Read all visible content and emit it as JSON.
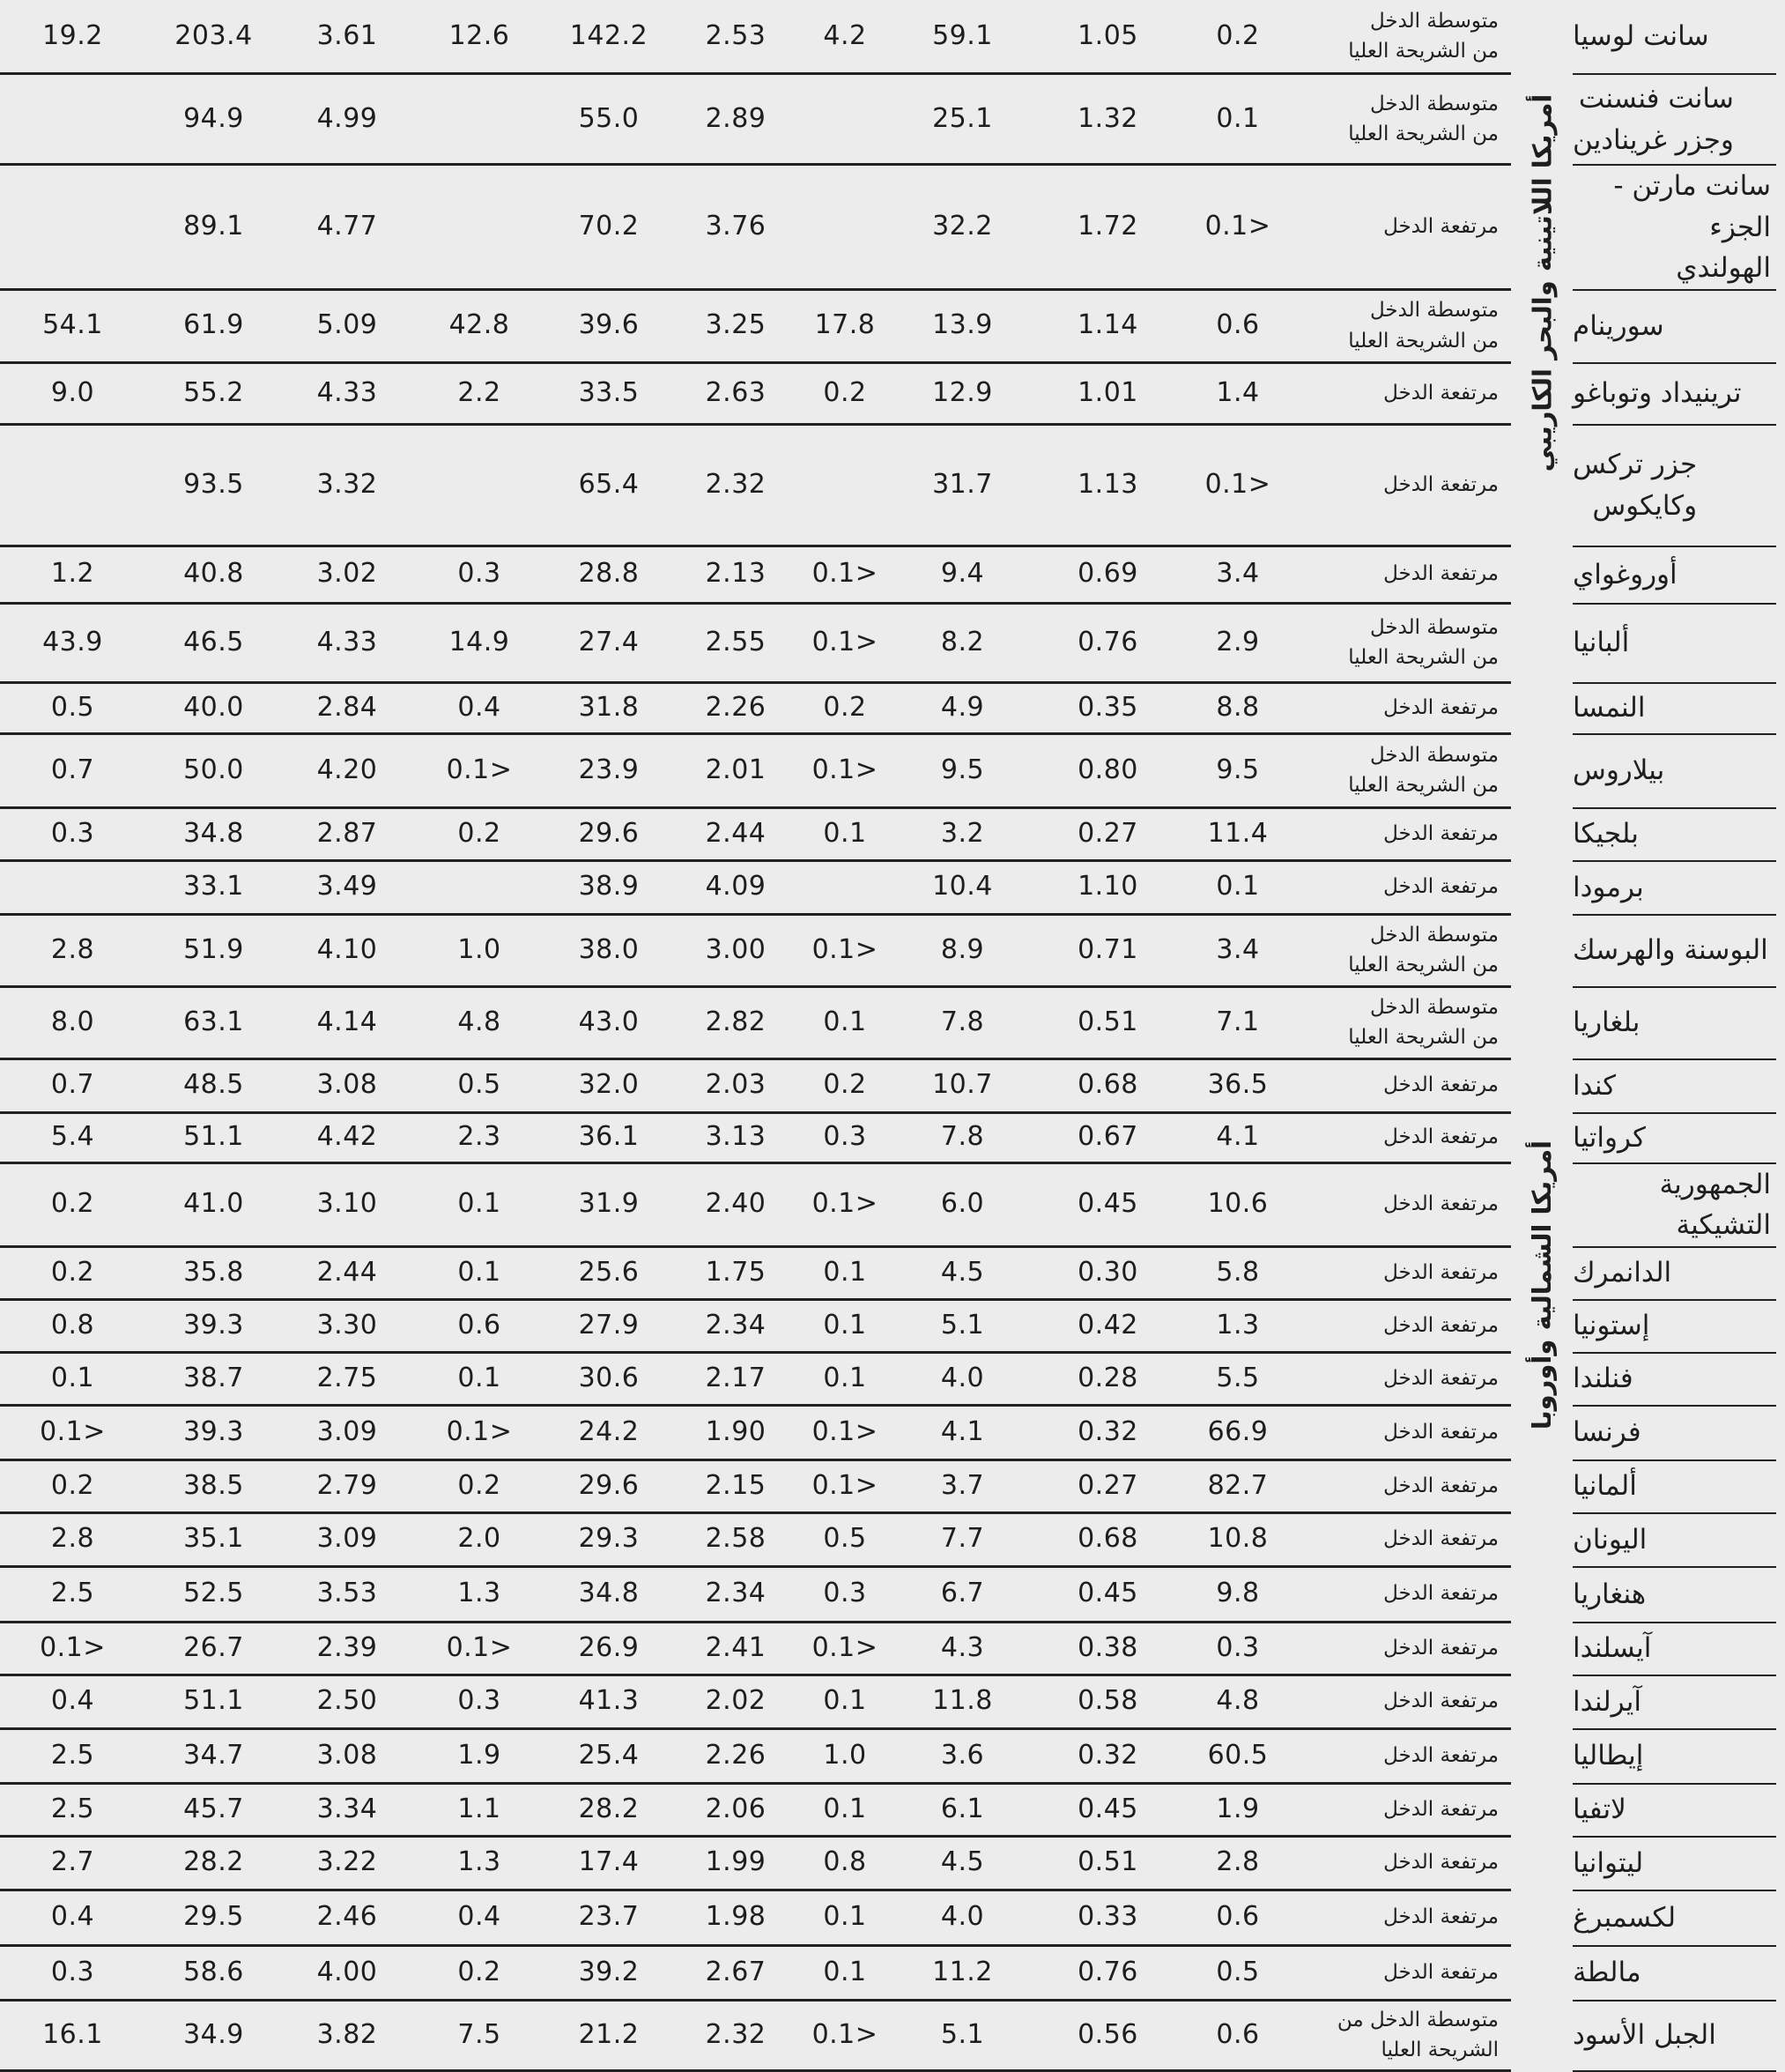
{
  "colors": {
    "background": "#ececec",
    "text": "#1e1e1e",
    "rule": "#222222"
  },
  "table": {
    "direction": "rtl",
    "region_labels": [
      {
        "label": "أمريكا اللاتينية والبحر الكاريبي",
        "from_row": 1,
        "to_row": 7
      },
      {
        "label": "أمريكا الشمالية وأوروبا",
        "from_row": 8,
        "to_row": 32
      }
    ],
    "rows": [
      {
        "country": "سانت لوسيا",
        "income": "متوسطة الدخل\nمن الشريحة العليا",
        "values": [
          "19.2",
          "203.4",
          "3.61",
          "12.6",
          "142.2",
          "2.53",
          "4.2",
          "59.1",
          "1.05",
          "0.2"
        ]
      },
      {
        "country": "سانت فنسنت\nوجزر غرينادين",
        "income": "متوسطة الدخل\nمن الشريحة العليا",
        "values": [
          "",
          "94.9",
          "4.99",
          "",
          "55.0",
          "2.89",
          "",
          "25.1",
          "1.32",
          "0.1"
        ]
      },
      {
        "country": "سانت مارتن - الجزء\nالهولندي",
        "income": "مرتفعة الدخل",
        "values": [
          "",
          "89.1",
          "4.77",
          "",
          "70.2",
          "3.76",
          "",
          "32.2",
          "1.72",
          "<0.1"
        ]
      },
      {
        "country": "سورينام",
        "income": "متوسطة الدخل\nمن الشريحة العليا",
        "values": [
          "54.1",
          "61.9",
          "5.09",
          "42.8",
          "39.6",
          "3.25",
          "17.8",
          "13.9",
          "1.14",
          "0.6"
        ]
      },
      {
        "country": "ترينيداد وتوباغو",
        "income": "مرتفعة الدخل",
        "values": [
          "9.0",
          "55.2",
          "4.33",
          "2.2",
          "33.5",
          "2.63",
          "0.2",
          "12.9",
          "1.01",
          "1.4"
        ]
      },
      {
        "country": "جزر تركس\nوكايكوس",
        "income": "مرتفعة الدخل",
        "values": [
          "",
          "93.5",
          "3.32",
          "",
          "65.4",
          "2.32",
          "",
          "31.7",
          "1.13",
          "<0.1"
        ]
      },
      {
        "country": "أوروغواي",
        "income": "مرتفعة الدخل",
        "values": [
          "1.2",
          "40.8",
          "3.02",
          "0.3",
          "28.8",
          "2.13",
          "<0.1",
          "9.4",
          "0.69",
          "3.4"
        ]
      },
      {
        "country": "ألبانيا",
        "income": "متوسطة الدخل\nمن الشريحة العليا",
        "values": [
          "43.9",
          "46.5",
          "4.33",
          "14.9",
          "27.4",
          "2.55",
          "<0.1",
          "8.2",
          "0.76",
          "2.9"
        ]
      },
      {
        "country": "النمسا",
        "income": "مرتفعة الدخل",
        "values": [
          "0.5",
          "40.0",
          "2.84",
          "0.4",
          "31.8",
          "2.26",
          "0.2",
          "4.9",
          "0.35",
          "8.8"
        ]
      },
      {
        "country": "بيلاروس",
        "income": "متوسطة الدخل\nمن الشريحة العليا",
        "values": [
          "0.7",
          "50.0",
          "4.20",
          "<0.1",
          "23.9",
          "2.01",
          "<0.1",
          "9.5",
          "0.80",
          "9.5"
        ]
      },
      {
        "country": "بلجيكا",
        "income": "مرتفعة الدخل",
        "values": [
          "0.3",
          "34.8",
          "2.87",
          "0.2",
          "29.6",
          "2.44",
          "0.1",
          "3.2",
          "0.27",
          "11.4"
        ]
      },
      {
        "country": "برمودا",
        "income": "مرتفعة الدخل",
        "values": [
          "",
          "33.1",
          "3.49",
          "",
          "38.9",
          "4.09",
          "",
          "10.4",
          "1.10",
          "0.1"
        ]
      },
      {
        "country": "البوسنة والهرسك",
        "income": "متوسطة الدخل\nمن الشريحة العليا",
        "values": [
          "2.8",
          "51.9",
          "4.10",
          "1.0",
          "38.0",
          "3.00",
          "<0.1",
          "8.9",
          "0.71",
          "3.4"
        ]
      },
      {
        "country": "بلغاريا",
        "income": "متوسطة الدخل\nمن الشريحة العليا",
        "values": [
          "8.0",
          "63.1",
          "4.14",
          "4.8",
          "43.0",
          "2.82",
          "0.1",
          "7.8",
          "0.51",
          "7.1"
        ]
      },
      {
        "country": "كندا",
        "income": "مرتفعة الدخل",
        "values": [
          "0.7",
          "48.5",
          "3.08",
          "0.5",
          "32.0",
          "2.03",
          "0.2",
          "10.7",
          "0.68",
          "36.5"
        ]
      },
      {
        "country": "كرواتيا",
        "income": "مرتفعة الدخل",
        "values": [
          "5.4",
          "51.1",
          "4.42",
          "2.3",
          "36.1",
          "3.13",
          "0.3",
          "7.8",
          "0.67",
          "4.1"
        ]
      },
      {
        "country": "الجمهورية التشيكية",
        "income": "مرتفعة الدخل",
        "values": [
          "0.2",
          "41.0",
          "3.10",
          "0.1",
          "31.9",
          "2.40",
          "<0.1",
          "6.0",
          "0.45",
          "10.6"
        ]
      },
      {
        "country": "الدانمرك",
        "income": "مرتفعة الدخل",
        "values": [
          "0.2",
          "35.8",
          "2.44",
          "0.1",
          "25.6",
          "1.75",
          "0.1",
          "4.5",
          "0.30",
          "5.8"
        ]
      },
      {
        "country": "إستونيا",
        "income": "مرتفعة الدخل",
        "values": [
          "0.8",
          "39.3",
          "3.30",
          "0.6",
          "27.9",
          "2.34",
          "0.1",
          "5.1",
          "0.42",
          "1.3"
        ]
      },
      {
        "country": "فنلندا",
        "income": "مرتفعة الدخل",
        "values": [
          "0.1",
          "38.7",
          "2.75",
          "0.1",
          "30.6",
          "2.17",
          "0.1",
          "4.0",
          "0.28",
          "5.5"
        ]
      },
      {
        "country": "فرنسا",
        "income": "مرتفعة الدخل",
        "values": [
          "<0.1",
          "39.3",
          "3.09",
          "<0.1",
          "24.2",
          "1.90",
          "<0.1",
          "4.1",
          "0.32",
          "66.9"
        ]
      },
      {
        "country": "ألمانيا",
        "income": "مرتفعة الدخل",
        "values": [
          "0.2",
          "38.5",
          "2.79",
          "0.2",
          "29.6",
          "2.15",
          "<0.1",
          "3.7",
          "0.27",
          "82.7"
        ]
      },
      {
        "country": "اليونان",
        "income": "مرتفعة الدخل",
        "values": [
          "2.8",
          "35.1",
          "3.09",
          "2.0",
          "29.3",
          "2.58",
          "0.5",
          "7.7",
          "0.68",
          "10.8"
        ]
      },
      {
        "country": "هنغاريا",
        "income": "مرتفعة الدخل",
        "values": [
          "2.5",
          "52.5",
          "3.53",
          "1.3",
          "34.8",
          "2.34",
          "0.3",
          "6.7",
          "0.45",
          "9.8"
        ]
      },
      {
        "country": "آيسلندا",
        "income": "مرتفعة الدخل",
        "values": [
          "<0.1",
          "26.7",
          "2.39",
          "<0.1",
          "26.9",
          "2.41",
          "<0.1",
          "4.3",
          "0.38",
          "0.3"
        ]
      },
      {
        "country": "آيرلندا",
        "income": "مرتفعة الدخل",
        "values": [
          "0.4",
          "51.1",
          "2.50",
          "0.3",
          "41.3",
          "2.02",
          "0.1",
          "11.8",
          "0.58",
          "4.8"
        ]
      },
      {
        "country": "إيطاليا",
        "income": "مرتفعة الدخل",
        "values": [
          "2.5",
          "34.7",
          "3.08",
          "1.9",
          "25.4",
          "2.26",
          "1.0",
          "3.6",
          "0.32",
          "60.5"
        ]
      },
      {
        "country": "لاتفيا",
        "income": "مرتفعة الدخل",
        "values": [
          "2.5",
          "45.7",
          "3.34",
          "1.1",
          "28.2",
          "2.06",
          "0.1",
          "6.1",
          "0.45",
          "1.9"
        ]
      },
      {
        "country": "ليتوانيا",
        "income": "مرتفعة الدخل",
        "values": [
          "2.7",
          "28.2",
          "3.22",
          "1.3",
          "17.4",
          "1.99",
          "0.8",
          "4.5",
          "0.51",
          "2.8"
        ]
      },
      {
        "country": "لكسمبرغ",
        "income": "مرتفعة الدخل",
        "values": [
          "0.4",
          "29.5",
          "2.46",
          "0.4",
          "23.7",
          "1.98",
          "0.1",
          "4.0",
          "0.33",
          "0.6"
        ]
      },
      {
        "country": "مالطة",
        "income": "مرتفعة الدخل",
        "values": [
          "0.3",
          "58.6",
          "4.00",
          "0.2",
          "39.2",
          "2.67",
          "0.1",
          "11.2",
          "0.76",
          "0.5"
        ]
      },
      {
        "country": "الجبل الأسود",
        "income": "متوسطة الدخل من\nالشريحة العليا",
        "values": [
          "16.1",
          "34.9",
          "3.82",
          "7.5",
          "21.2",
          "2.32",
          "<0.1",
          "5.1",
          "0.56",
          "0.6"
        ]
      }
    ]
  }
}
